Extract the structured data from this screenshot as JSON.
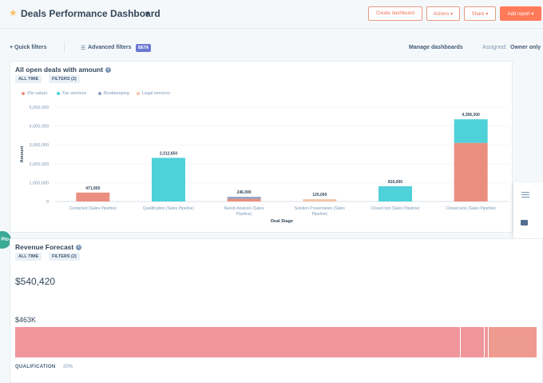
{
  "header": {
    "title": "Deals Performance Dashboard",
    "buttons": {
      "create": "Create dashboard",
      "actions": "Actions ▾",
      "share": "Share ▾",
      "add_report": "Add report ▾"
    }
  },
  "filterbar": {
    "quick_filters": "+ Quick filters",
    "advanced_filters": "Advanced filters",
    "beta": "BETA",
    "manage_dashboards": "Manage dashboards",
    "assigned_label": "Assigned:",
    "assigned_value": "Owner only"
  },
  "report1": {
    "title": "All open deals with amount",
    "pills": [
      "ALL TIME",
      "FILTERS (2)"
    ],
    "legend": [
      {
        "label": "(No value)",
        "color": "#ea8f7f"
      },
      {
        "label": "Tax services",
        "color": "#4fd1d9"
      },
      {
        "label": "Bookkeeping",
        "color": "#8f9dc0"
      },
      {
        "label": "Legal services",
        "color": "#f5c6a8"
      }
    ]
  },
  "chart_data": {
    "type": "bar",
    "stacked": true,
    "xlabel": "Deal Stage",
    "ylabel": "Amount",
    "ylim": [
      0,
      5000000
    ],
    "y_ticks": [
      0,
      1000000,
      2000000,
      3000000,
      4000000,
      5000000
    ],
    "y_tick_labels": [
      "0",
      "1,000,000",
      "2,000,000",
      "3,000,000",
      "4,000,000",
      "5,000,000"
    ],
    "categories": [
      "Contacted (Sales Pipeline)",
      "Qualification (Sales Pipeline)",
      "Needs Analysis (Sales Pipeline)",
      "Solution Presentation (Sales Pipeline)",
      "Closed lost (Sales Pipeline)",
      "Closed won (Sales Pipeline)"
    ],
    "totals_labels": [
      "471,900",
      "2,312,650",
      "246,000",
      "120,000",
      "810,000",
      "4,356,300"
    ],
    "series": [
      {
        "name": "(No value)",
        "color": "#ea8f7f",
        "values": [
          471900,
          0,
          140000,
          0,
          0,
          3106300
        ]
      },
      {
        "name": "Tax services",
        "color": "#4fd1d9",
        "values": [
          0,
          2312650,
          0,
          0,
          810000,
          1250000
        ]
      },
      {
        "name": "Bookkeeping",
        "color": "#8f9dc0",
        "values": [
          0,
          0,
          106000,
          0,
          0,
          0
        ]
      },
      {
        "name": "Legal services",
        "color": "#f5c6a8",
        "values": [
          0,
          0,
          0,
          120000,
          0,
          0
        ]
      }
    ]
  },
  "report2": {
    "title": "Revenue Forecast",
    "pills": [
      "ALL TIME",
      "FILTERS (2)"
    ],
    "total": "$540,420",
    "stage_amount": "$463K",
    "stage_name": "QUALIFICATION",
    "stage_pct": "20%",
    "segments": [
      {
        "share": 0.852,
        "color": "#f0969b"
      },
      {
        "share": 0.046,
        "color": "#f0969b"
      },
      {
        "share": 0.008,
        "color": "#f0969b"
      },
      {
        "share": 0.094,
        "color": "#ef9a8f"
      }
    ]
  },
  "left_bubble": "Pto"
}
